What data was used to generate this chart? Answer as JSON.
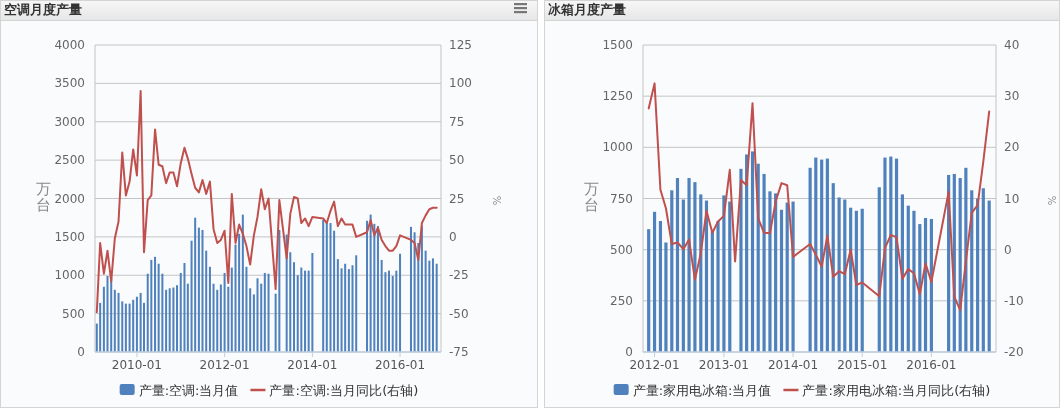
{
  "chart_data": [
    {
      "type": "bar",
      "title": "空调月度产量",
      "ylabel": "万台",
      "y2label": "%",
      "x": [
        "2009-02",
        "2009-03",
        "2009-04",
        "2009-05",
        "2009-06",
        "2009-07",
        "2009-08",
        "2009-09",
        "2009-10",
        "2009-11",
        "2009-12",
        "2010-01",
        "2010-02",
        "2010-03",
        "2010-04",
        "2010-05",
        "2010-06",
        "2010-07",
        "2010-08",
        "2010-09",
        "2010-10",
        "2010-11",
        "2010-12",
        "2011-01",
        "2011-02",
        "2011-03",
        "2011-04",
        "2011-05",
        "2011-06",
        "2011-07",
        "2011-08",
        "2011-09",
        "2011-10",
        "2011-11",
        "2011-12",
        "2012-01",
        "2012-02",
        "2012-03",
        "2012-04",
        "2012-05",
        "2012-06",
        "2012-07",
        "2012-08",
        "2012-09",
        "2012-10",
        "2012-11",
        "2012-12",
        "2013-01",
        "2013-03",
        "2013-04",
        "2013-06",
        "2013-07",
        "2013-08",
        "2013-09",
        "2013-10",
        "2013-11",
        "2013-12",
        "2014-01",
        "2014-04",
        "2014-05",
        "2014-06",
        "2014-07",
        "2014-08",
        "2014-09",
        "2014-10",
        "2014-11",
        "2014-12",
        "2015-01",
        "2015-04",
        "2015-05",
        "2015-06",
        "2015-07",
        "2015-08",
        "2015-09",
        "2015-10",
        "2015-11",
        "2015-12",
        "2016-01",
        "2016-04",
        "2016-05",
        "2016-06",
        "2016-07",
        "2016-08",
        "2016-09",
        "2016-10",
        "2016-11"
      ],
      "series": [
        {
          "name": "产量:空调:当月值",
          "color": "#4f81bd",
          "values": [
            370,
            640,
            850,
            990,
            960,
            810,
            770,
            660,
            630,
            630,
            680,
            720,
            770,
            640,
            1020,
            1200,
            1240,
            1150,
            1020,
            810,
            830,
            840,
            870,
            1030,
            1160,
            890,
            1450,
            1750,
            1620,
            1590,
            1320,
            1110,
            890,
            810,
            880,
            1030,
            850,
            1100,
            1400,
            1540,
            1790,
            1110,
            830,
            750,
            960,
            890,
            1030,
            1020,
            760,
            1590,
            1530,
            1300,
            1170,
            1000,
            1100,
            1060,
            1060,
            1290,
            1720,
            1690,
            1680,
            1580,
            1210,
            1090,
            1150,
            1080,
            1130,
            1260,
            1710,
            1790,
            1670,
            1640,
            1200,
            1040,
            1060,
            990,
            1060,
            1280,
            1630,
            1560,
            1420,
            1640,
            1320,
            1190,
            1220,
            1150
          ]
        },
        {
          "name": "产量:空调:当月同比(右轴)",
          "type": "line",
          "axis": "y2",
          "color": "#c0504d",
          "values": [
            -49,
            -4,
            -24,
            -9,
            -29,
            -1,
            10,
            55,
            27,
            36,
            57,
            40,
            95,
            -10,
            24,
            27,
            70,
            47,
            46,
            35,
            42,
            42,
            33,
            48,
            58,
            51,
            41,
            32,
            29,
            37,
            28,
            36,
            5,
            -4,
            -2,
            4,
            -30,
            28,
            -4,
            8,
            2,
            -6,
            -18,
            1,
            13,
            31,
            18,
            25,
            -34,
            24,
            -14,
            15,
            26,
            25,
            9,
            12,
            7,
            13,
            12,
            9,
            17,
            23,
            7,
            12,
            8,
            8,
            8,
            0,
            3,
            11,
            1,
            6,
            -2,
            -6,
            -9,
            -9,
            -6,
            1,
            -2,
            -4,
            -15,
            9,
            14,
            18,
            19,
            19
          ]
        }
      ],
      "xlim": [
        "2009-01-17",
        "2016-12-07"
      ],
      "xticks": [
        "2010-01",
        "2012-01",
        "2014-01",
        "2016-01"
      ],
      "ylim": [
        0,
        4000
      ],
      "yticks": [
        0,
        500,
        1000,
        1500,
        2000,
        2500,
        3000,
        3500,
        4000
      ],
      "y2lim": [
        -75,
        125
      ],
      "y2ticks": [
        -75,
        -50,
        -25,
        0,
        25,
        50,
        75,
        100,
        125
      ],
      "grid": "y",
      "legend": "bottom"
    },
    {
      "type": "bar",
      "title": "冰箱月度产量",
      "ylabel": "万台",
      "y2label": "%",
      "x": [
        "2011-12",
        "2012-01",
        "2012-02",
        "2012-03",
        "2012-04",
        "2012-05",
        "2012-06",
        "2012-07",
        "2012-08",
        "2012-09",
        "2012-10",
        "2012-11",
        "2012-12",
        "2013-01",
        "2013-02",
        "2013-03",
        "2013-04",
        "2013-05",
        "2013-06",
        "2013-07",
        "2013-08",
        "2013-09",
        "2013-10",
        "2013-11",
        "2013-12",
        "2014-01",
        "2014-04",
        "2014-05",
        "2014-06",
        "2014-07",
        "2014-08",
        "2014-09",
        "2014-10",
        "2014-11",
        "2014-12",
        "2015-01",
        "2015-04",
        "2015-05",
        "2015-06",
        "2015-07",
        "2015-08",
        "2015-09",
        "2015-10",
        "2015-11",
        "2015-12",
        "2016-01",
        "2016-04",
        "2016-05",
        "2016-06",
        "2016-07",
        "2016-08",
        "2016-09",
        "2016-10",
        "2016-11"
      ],
      "series": [
        {
          "name": "产量:家用电冰箱:当月值",
          "color": "#4f81bd",
          "values": [
            600,
            685,
            640,
            535,
            790,
            850,
            745,
            850,
            830,
            770,
            740,
            590,
            640,
            765,
            735,
            null,
            895,
            965,
            980,
            920,
            870,
            785,
            775,
            695,
            730,
            735,
            900,
            950,
            940,
            945,
            825,
            755,
            745,
            705,
            690,
            700,
            805,
            950,
            955,
            945,
            770,
            715,
            690,
            625,
            655,
            650,
            865,
            870,
            850,
            900,
            790,
            750,
            800,
            740
          ]
        },
        {
          "name": "产量:家用电冰箱:当月同比(右轴)",
          "type": "line",
          "axis": "y2",
          "color": "#c0504d",
          "values": [
            27.6,
            32.5,
            11.7,
            8.1,
            1.1,
            1.4,
            0.1,
            2,
            -5.9,
            -0.7,
            7.6,
            3.3,
            5.5,
            6.6,
            15.6,
            -2.3,
            13.6,
            12.6,
            28.6,
            6.1,
            3.3,
            3.2,
            9.4,
            13,
            12.6,
            -1.4,
            1.1,
            -1,
            -3.3,
            2.7,
            -5.3,
            -4.2,
            -4.8,
            0,
            -6.9,
            -6.4,
            -9.1,
            0.3,
            2.9,
            2.4,
            -5.7,
            -3.8,
            -4.6,
            -8.7,
            -2.7,
            -6.3,
            11.3,
            -9.2,
            -11.8,
            -2.3,
            7.2,
            8.7,
            17.2,
            27
          ]
        }
      ],
      "xlim": [
        "2011-11-01",
        "2016-12-07"
      ],
      "xticks": [
        "2012-01",
        "2013-01",
        "2014-01",
        "2015-01",
        "2016-01"
      ],
      "ylim": [
        0,
        1500
      ],
      "yticks": [
        0,
        250,
        500,
        750,
        1000,
        1250,
        1500
      ],
      "y2lim": [
        -20,
        40
      ],
      "y2ticks": [
        -20,
        -10,
        0,
        10,
        20,
        30,
        40
      ],
      "grid": "y",
      "legend": "bottom"
    }
  ]
}
